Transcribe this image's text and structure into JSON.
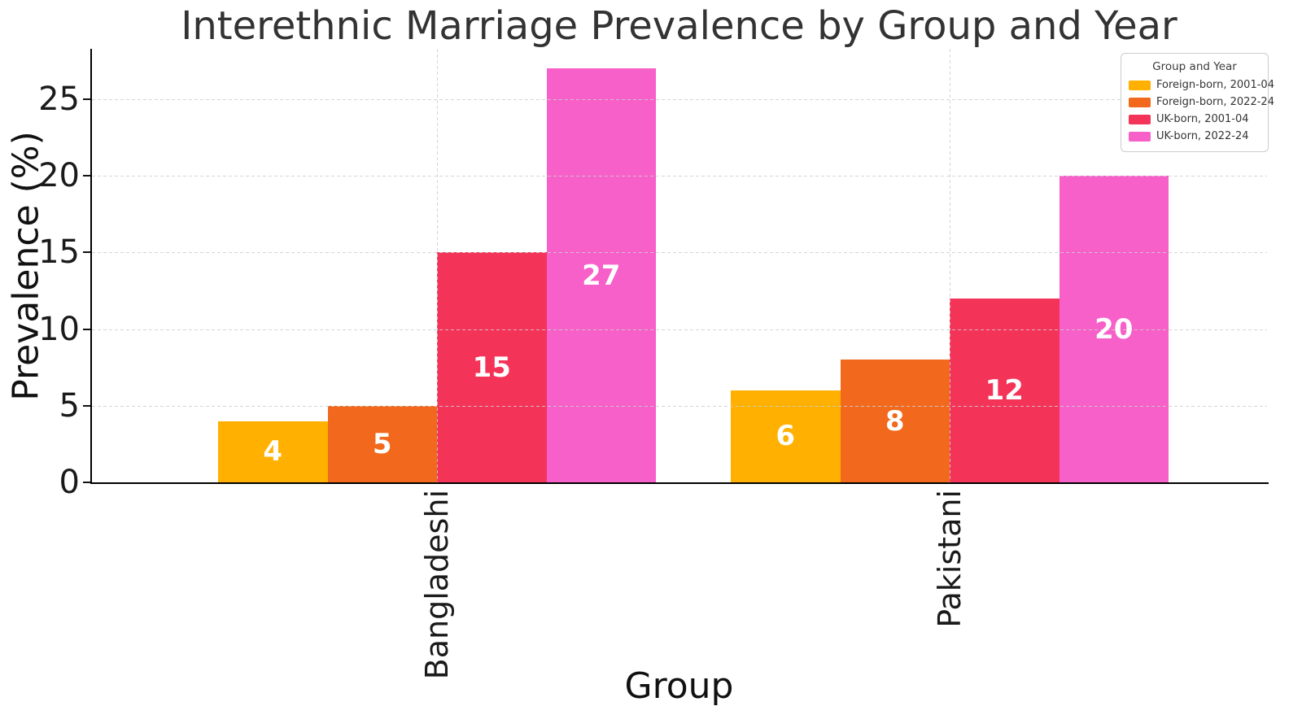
{
  "chart_data": {
    "type": "bar",
    "title": "Interethnic Marriage Prevalence by Group and Year",
    "xlabel": "Group",
    "ylabel": "Prevalence (%)",
    "categories": [
      "Bangladeshi",
      "Pakistani"
    ],
    "series": [
      {
        "name": "Foreign-born, 2001-04",
        "color": "#FFB000",
        "values": [
          4,
          6
        ]
      },
      {
        "name": "Foreign-born, 2022-24",
        "color": "#F2691D",
        "values": [
          5,
          8
        ]
      },
      {
        "name": "UK-born, 2001-04",
        "color": "#F43358",
        "values": [
          15,
          12
        ]
      },
      {
        "name": "UK-born, 2022-24",
        "color": "#F75FC9",
        "values": [
          27,
          20
        ]
      }
    ],
    "yticks": [
      0,
      5,
      10,
      15,
      20,
      25
    ],
    "ylim": [
      0,
      28.3
    ],
    "grid": true,
    "grid_style": "dashed",
    "bar_value_labels": true,
    "legend": {
      "title": "Group and Year",
      "position": "upper-right"
    }
  },
  "colors": {
    "title_text": "#333333",
    "axis_text": "#1a1a1a",
    "grid": "#cccccc",
    "spine": "#000000",
    "bar_value_text": "#ffffff"
  }
}
